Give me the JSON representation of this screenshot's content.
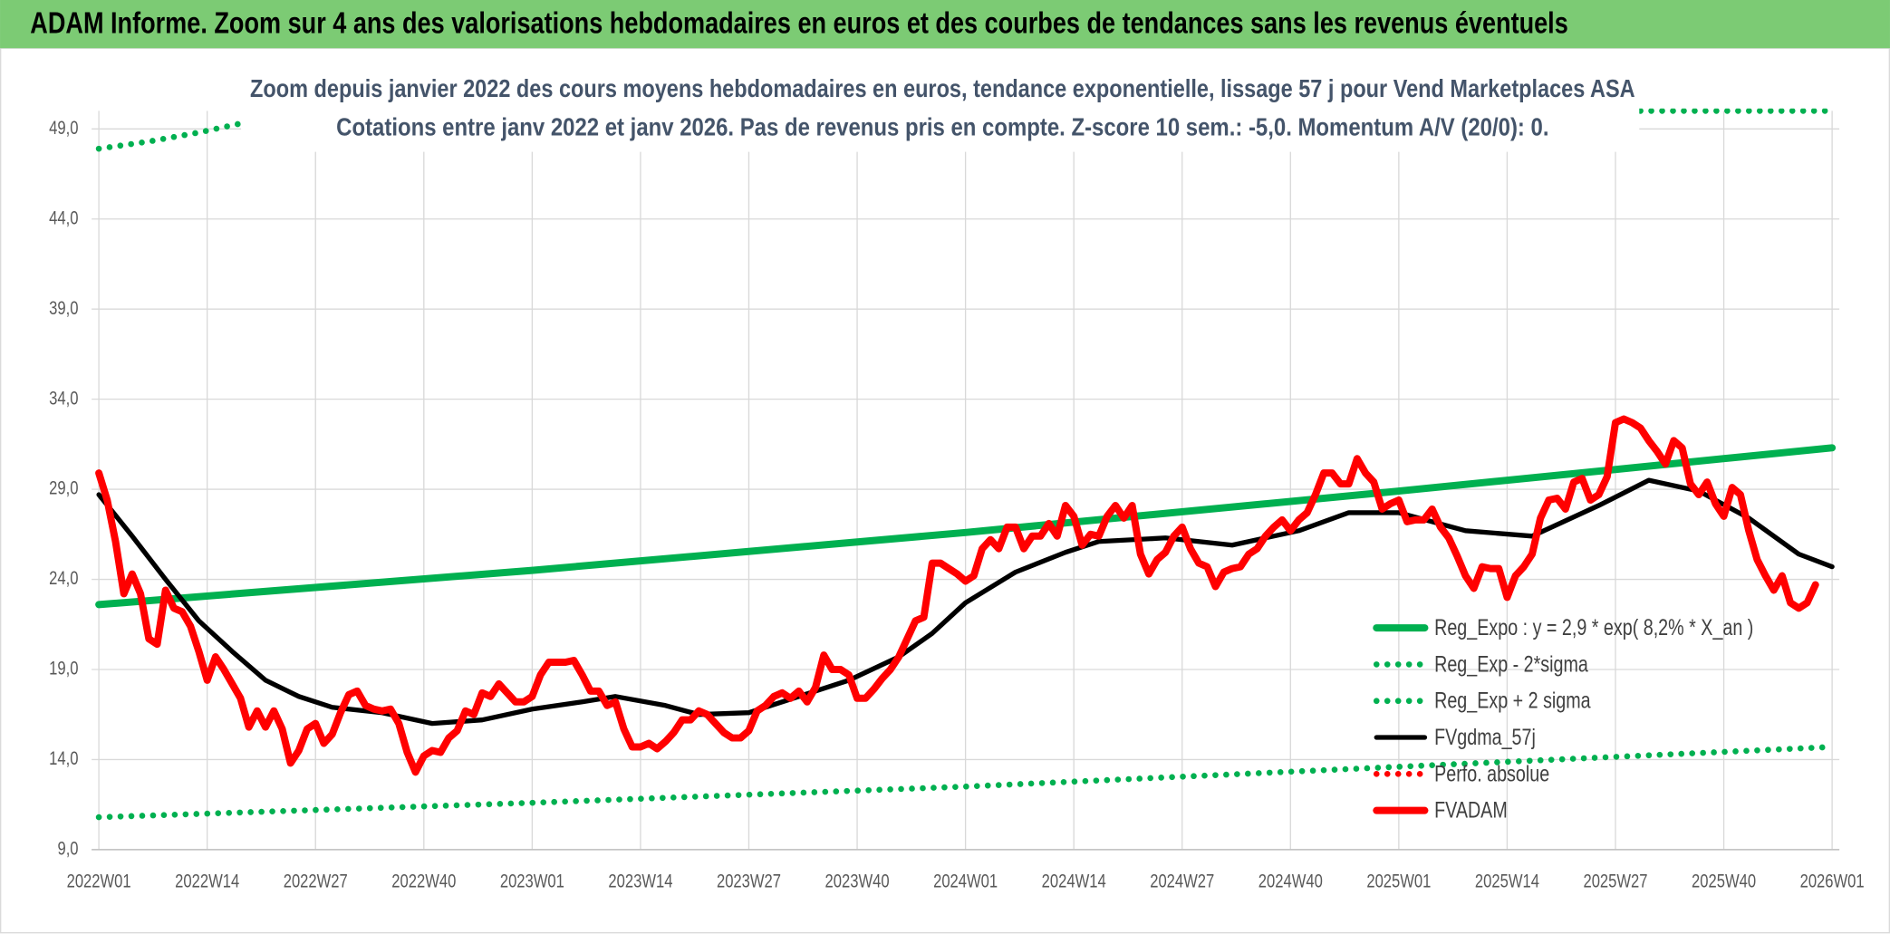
{
  "chart_data": {
    "type": "line",
    "title": "ADAM Informe. Zoom sur 4 ans des valorisations hebdomadaires en euros et des courbes de tendances sans les revenus éventuels",
    "subtitle": [
      "Zoom depuis janvier 2022 des cours moyens hebdomadaires en euros, tendance exponentielle, lissage 57 j pour Vend Marketplaces ASA",
      "Cotations entre janv 2022 et janv 2026. Pas de revenus pris en compte. Z-score 10 sem.: -5,0. Momentum A/V (20/0): 0."
    ],
    "xlim": [
      0,
      208
    ],
    "xticks": [
      {
        "value": 0,
        "label": "2022W01"
      },
      {
        "value": 13,
        "label": "2022W14"
      },
      {
        "value": 26,
        "label": "2022W27"
      },
      {
        "value": 39,
        "label": "2022W40"
      },
      {
        "value": 52,
        "label": "2023W01"
      },
      {
        "value": 65,
        "label": "2023W14"
      },
      {
        "value": 78,
        "label": "2023W27"
      },
      {
        "value": 91,
        "label": "2023W40"
      },
      {
        "value": 104,
        "label": "2024W01"
      },
      {
        "value": 117,
        "label": "2024W14"
      },
      {
        "value": 130,
        "label": "2024W27"
      },
      {
        "value": 143,
        "label": "2024W40"
      },
      {
        "value": 156,
        "label": "2025W01"
      },
      {
        "value": 169,
        "label": "2025W14"
      },
      {
        "value": 182,
        "label": "2025W27"
      },
      {
        "value": 195,
        "label": "2025W40"
      },
      {
        "value": 208,
        "label": "2026W01"
      }
    ],
    "ylim": [
      9,
      50
    ],
    "yticks": [
      {
        "value": 9,
        "label": "9,0"
      },
      {
        "value": 14,
        "label": "14,0"
      },
      {
        "value": 19,
        "label": "19,0"
      },
      {
        "value": 24,
        "label": "24,0"
      },
      {
        "value": 29,
        "label": "29,0"
      },
      {
        "value": 34,
        "label": "34,0"
      },
      {
        "value": 39,
        "label": "39,0"
      },
      {
        "value": 44,
        "label": "44,0"
      },
      {
        "value": 49,
        "label": "49,0"
      }
    ],
    "grid": true,
    "legend": "right",
    "series": [
      {
        "name": "Reg_Expo : y = 2,9 * exp( 8,2% *  X_an )",
        "color": "#00b050",
        "style": "solid",
        "x": [
          0,
          52,
          104,
          156,
          208
        ],
        "values": [
          22.6,
          24.5,
          26.6,
          28.9,
          31.3
        ]
      },
      {
        "name": "Reg_Exp - 2*sigma",
        "color": "#00b050",
        "style": "dotted",
        "x": [
          0,
          52,
          104,
          156,
          208
        ],
        "values": [
          10.8,
          11.6,
          12.5,
          13.6,
          14.7
        ]
      },
      {
        "name": "Reg_Exp + 2 sigma",
        "color": "#00b050",
        "style": "dotted",
        "x": [
          0,
          6,
          12,
          17,
          100,
          185,
          208
        ],
        "values": [
          47.9,
          48.3,
          48.8,
          49.3,
          null,
          50.0,
          50.0
        ]
      },
      {
        "name": "FVgdma_57j",
        "color": "#000000",
        "style": "solid",
        "x": [
          0,
          4,
          8,
          12,
          16,
          20,
          24,
          28,
          34,
          40,
          46,
          52,
          58,
          62,
          68,
          72,
          78,
          84,
          90,
          96,
          100,
          104,
          110,
          116,
          120,
          128,
          136,
          144,
          150,
          156,
          164,
          172,
          180,
          186,
          192,
          198,
          204,
          208
        ],
        "values": [
          28.7,
          26.4,
          24.0,
          21.7,
          20.0,
          18.4,
          17.5,
          16.9,
          16.6,
          16.0,
          16.2,
          16.8,
          17.2,
          17.5,
          17.0,
          16.5,
          16.6,
          17.5,
          18.4,
          19.7,
          21.0,
          22.7,
          24.4,
          25.5,
          26.1,
          26.3,
          25.9,
          26.7,
          27.7,
          27.7,
          26.7,
          26.4,
          28.1,
          29.5,
          28.9,
          27.4,
          25.4,
          24.7
        ]
      },
      {
        "name": "Perfo. absolue",
        "color": "#ff0000",
        "style": "dotted"
      },
      {
        "name": "FVADAM",
        "color": "#ff0000",
        "style": "solid",
        "x": [
          0,
          1,
          2,
          3,
          4,
          5,
          6,
          7,
          8,
          9,
          10,
          11,
          12,
          13,
          14,
          15,
          16,
          17,
          18,
          19,
          20,
          21,
          22,
          23,
          24,
          25,
          26,
          27,
          28,
          29,
          30,
          31,
          32,
          33,
          34,
          35,
          36,
          37,
          38,
          39,
          40,
          41,
          42,
          43,
          44,
          45,
          46,
          47,
          48,
          49,
          50,
          51,
          52,
          53,
          54,
          55,
          56,
          57,
          58,
          59,
          60,
          61,
          62,
          63,
          64,
          65,
          66,
          67,
          68,
          69,
          70,
          71,
          72,
          73,
          74,
          75,
          76,
          77,
          78,
          79,
          80,
          81,
          82,
          83,
          84,
          85,
          86,
          87,
          88,
          89,
          90,
          91,
          92,
          93,
          94,
          95,
          96,
          97,
          98,
          99,
          100,
          101,
          102,
          103,
          104,
          105,
          106,
          107,
          108,
          109,
          110,
          111,
          112,
          113,
          114,
          115,
          116,
          117,
          118,
          119,
          120,
          121,
          122,
          123,
          124,
          125,
          126,
          127,
          128,
          129,
          130,
          131,
          132,
          133,
          134,
          135,
          136,
          137,
          138,
          139,
          140,
          141,
          142,
          143,
          144,
          145,
          146,
          147,
          148,
          149,
          150,
          151,
          152,
          153,
          154,
          155,
          156,
          157,
          158,
          159,
          160,
          161,
          162,
          163,
          164,
          165,
          166,
          167,
          168,
          169,
          170,
          171,
          172,
          173,
          174,
          175,
          176,
          177,
          178,
          179,
          180,
          181,
          182,
          183,
          184,
          185,
          186,
          187,
          188,
          189,
          190,
          191,
          192,
          193,
          194,
          195,
          196,
          197,
          198,
          199,
          200,
          201,
          202,
          203,
          204,
          205,
          206
        ],
        "values": [
          29.9,
          28.4,
          26.1,
          23.2,
          24.3,
          23.2,
          20.7,
          20.4,
          23.4,
          22.4,
          22.2,
          21.4,
          20.0,
          18.4,
          19.7,
          19.0,
          18.2,
          17.4,
          15.8,
          16.7,
          15.8,
          16.7,
          15.7,
          13.8,
          14.5,
          15.7,
          16.0,
          14.9,
          15.4,
          16.6,
          17.6,
          17.8,
          17.0,
          16.8,
          16.7,
          16.8,
          16.0,
          14.4,
          13.3,
          14.2,
          14.5,
          14.4,
          15.2,
          15.6,
          16.7,
          16.5,
          17.7,
          17.5,
          18.2,
          17.7,
          17.2,
          17.2,
          17.5,
          18.7,
          19.4,
          19.4,
          19.4,
          19.5,
          18.7,
          17.8,
          17.8,
          17.0,
          17.2,
          15.7,
          14.7,
          14.7,
          14.9,
          14.6,
          15.0,
          15.5,
          16.2,
          16.2,
          16.7,
          16.5,
          16.0,
          15.5,
          15.2,
          15.2,
          15.6,
          16.7,
          17.0,
          17.5,
          17.7,
          17.4,
          17.8,
          17.2,
          18.0,
          19.8,
          19.0,
          19.0,
          18.7,
          17.4,
          17.4,
          17.9,
          18.5,
          19.0,
          19.7,
          20.7,
          21.7,
          21.9,
          24.9,
          24.9,
          24.6,
          24.3,
          23.9,
          24.2,
          25.7,
          26.2,
          25.7,
          26.9,
          26.9,
          25.7,
          26.4,
          26.4,
          27.1,
          26.4,
          28.1,
          27.5,
          25.9,
          26.5,
          26.4,
          27.5,
          28.1,
          27.4,
          28.1,
          25.4,
          24.3,
          25.1,
          25.5,
          26.4,
          26.9,
          25.7,
          24.9,
          24.7,
          23.6,
          24.4,
          24.6,
          24.7,
          25.4,
          25.7,
          26.4,
          26.9,
          27.3,
          26.7,
          27.3,
          27.7,
          28.7,
          29.9,
          29.9,
          29.3,
          29.3,
          30.7,
          29.9,
          29.4,
          27.9,
          28.2,
          28.4,
          27.2,
          27.3,
          27.3,
          27.9,
          26.9,
          26.3,
          25.3,
          24.2,
          23.5,
          24.7,
          24.6,
          24.6,
          23.0,
          24.2,
          24.7,
          25.4,
          27.4,
          28.4,
          28.5,
          27.9,
          29.4,
          29.6,
          28.4,
          28.7,
          29.7,
          32.7,
          32.9,
          32.7,
          32.4,
          31.7,
          31.1,
          30.4,
          31.7,
          31.3,
          29.3,
          28.7,
          29.4,
          28.2,
          27.5,
          29.1,
          28.7,
          26.7,
          25.1,
          24.2,
          23.4,
          24.2,
          22.7,
          22.4,
          22.7,
          23.7
        ]
      }
    ]
  }
}
